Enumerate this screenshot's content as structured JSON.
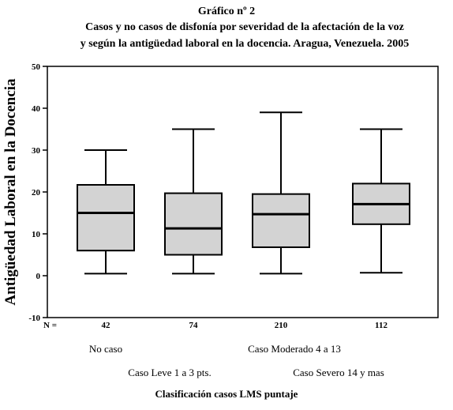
{
  "chart_data": {
    "type": "boxplot",
    "title": "Gráfico nº 2",
    "subtitle_lines": [
      "Casos y no casos de disfonía por severidad de la afectación de la voz",
      "y según la antigüedad laboral en la docencia.  Aragua, Venezuela. 2005"
    ],
    "ylabel": "Antigüedad Laboral en la Docencia",
    "xlabel": "Clasificación casos LMS puntaje",
    "ylim": [
      -10,
      50
    ],
    "yticks": [
      -10,
      0,
      10,
      20,
      30,
      40,
      50
    ],
    "n_label": "N =",
    "categories": [
      "No caso",
      "Caso Leve 1 a 3 pts.",
      "Caso Moderado 4 a 13",
      "Caso Severo 14 y mas"
    ],
    "n": [
      "42",
      "74",
      "210",
      "112"
    ],
    "boxes": [
      {
        "min": 0.5,
        "q1": 6,
        "median": 15,
        "q3": 21.7,
        "max": 30
      },
      {
        "min": 0.5,
        "q1": 5,
        "median": 11.3,
        "q3": 19.7,
        "max": 35
      },
      {
        "min": 0.5,
        "q1": 6.8,
        "median": 14.7,
        "q3": 19.5,
        "max": 39
      },
      {
        "min": 0.7,
        "q1": 12.3,
        "median": 17.1,
        "q3": 22,
        "max": 35
      }
    ],
    "box_fill": "#d3d3d3",
    "line_color": "#000000",
    "grid": false
  }
}
